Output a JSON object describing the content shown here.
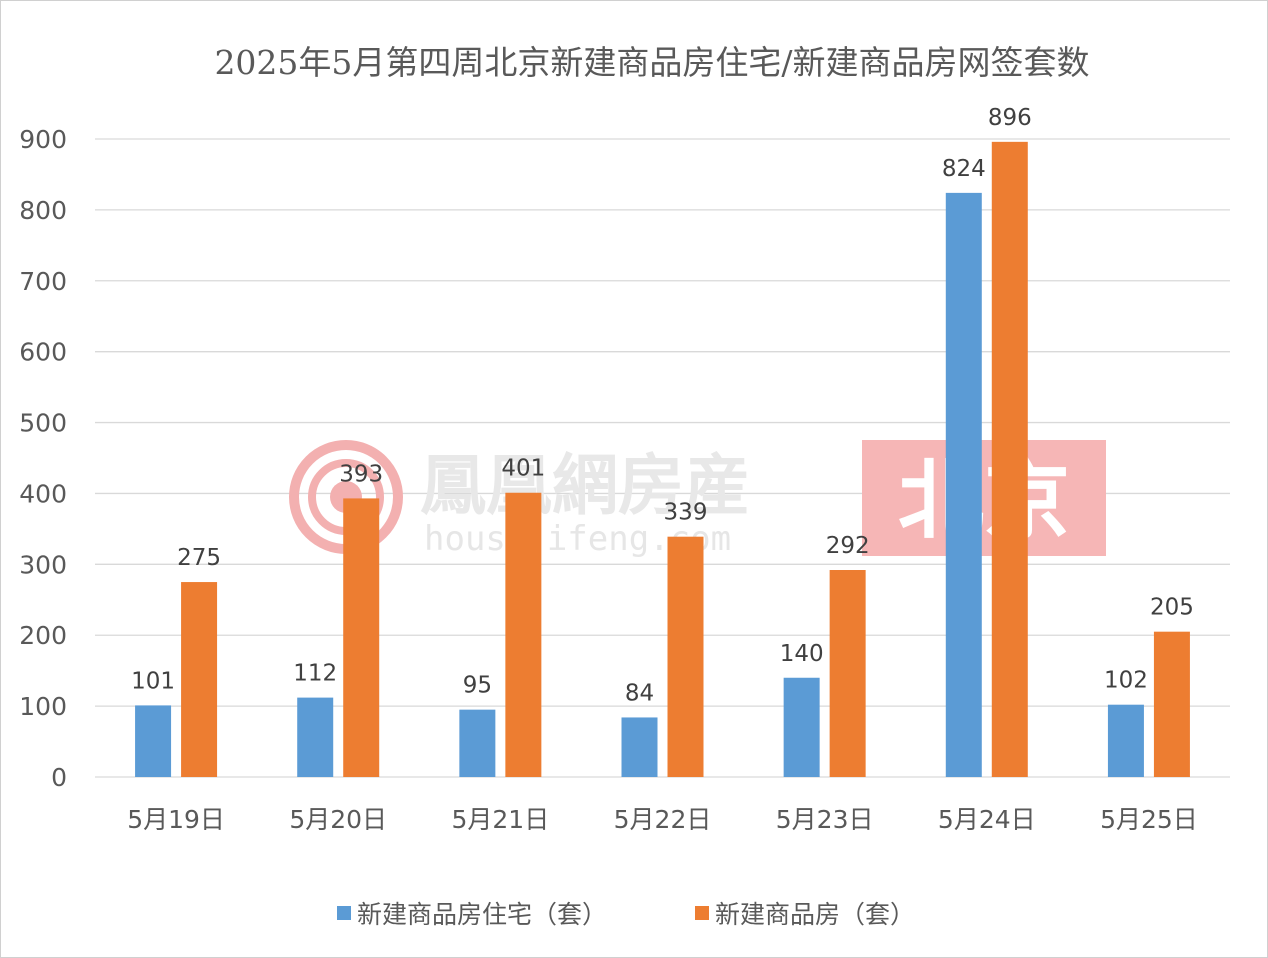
{
  "chart_data": {
    "type": "bar",
    "title": "2025年5月第四周北京新建商品房住宅/新建商品房网签套数",
    "categories": [
      "5月19日",
      "5月20日",
      "5月21日",
      "5月22日",
      "5月23日",
      "5月24日",
      "5月25日"
    ],
    "series": [
      {
        "name": "新建商品房住宅（套）",
        "color": "#5b9bd5",
        "values": [
          101,
          112,
          95,
          84,
          140,
          824,
          102
        ]
      },
      {
        "name": "新建商品房（套）",
        "color": "#ed7d31",
        "values": [
          275,
          393,
          401,
          339,
          292,
          896,
          205
        ]
      }
    ],
    "ylim": [
      0,
      900
    ],
    "yticks": [
      0,
      100,
      200,
      300,
      400,
      500,
      600,
      700,
      800,
      900
    ],
    "grid": true,
    "legend_position": "bottom",
    "data_labels": true
  },
  "watermark": {
    "brand": "鳳凰網房産",
    "url": "house.ifeng.com",
    "city": "北京",
    "logo_color": "#f08080",
    "city_bg_color": "#f4a3a3"
  }
}
